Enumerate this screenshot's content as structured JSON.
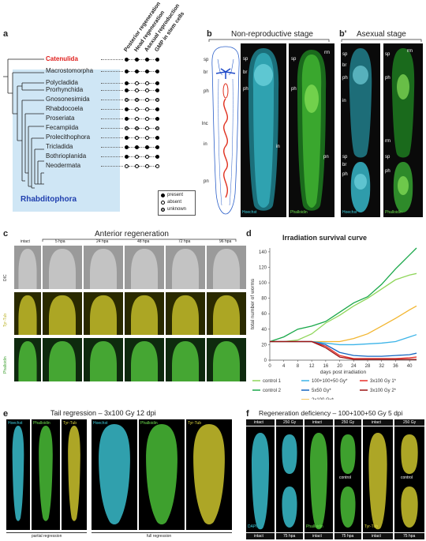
{
  "panel_a": {
    "label": "a",
    "columns": [
      "Posterior regeneration",
      "Head regeneration",
      "Asexual reproduction",
      "GMP in stem cells"
    ],
    "taxa": [
      {
        "name": "Catenulida",
        "highlight": true,
        "states": [
          "present",
          "present",
          "present",
          "present"
        ]
      },
      {
        "name": "Macrostomorpha",
        "highlight": false,
        "states": [
          "present",
          "present",
          "present",
          "present"
        ]
      },
      {
        "name": "Polycladida",
        "highlight": false,
        "states": [
          "present",
          "absent",
          "absent",
          "present"
        ]
      },
      {
        "name": "Prorhynchida",
        "highlight": false,
        "states": [
          "present",
          "absent",
          "absent",
          "present"
        ]
      },
      {
        "name": "Gnosonesimida",
        "highlight": false,
        "states": [
          "unknown",
          "unknown",
          "absent",
          "unknown"
        ]
      },
      {
        "name": "Rhabdocoela",
        "highlight": false,
        "states": [
          "present",
          "absent",
          "absent",
          "present"
        ]
      },
      {
        "name": "Proseriata",
        "highlight": false,
        "states": [
          "present",
          "absent",
          "absent",
          "present"
        ]
      },
      {
        "name": "Fecampiida",
        "highlight": false,
        "states": [
          "unknown",
          "unknown",
          "absent",
          "unknown"
        ]
      },
      {
        "name": "Prolecithophora",
        "highlight": false,
        "states": [
          "present",
          "absent",
          "absent",
          "present"
        ]
      },
      {
        "name": "Tricladida",
        "highlight": false,
        "states": [
          "present",
          "present",
          "present",
          "present"
        ]
      },
      {
        "name": "Bothrioplanida",
        "highlight": false,
        "states": [
          "present",
          "absent",
          "absent",
          "present"
        ]
      },
      {
        "name": "Neodermata",
        "highlight": false,
        "states": [
          "absent",
          "absent",
          "absent",
          "absent"
        ]
      }
    ],
    "group_label": "Rhabditophora",
    "legend": [
      {
        "state": "present",
        "label": "present"
      },
      {
        "state": "absent",
        "label": "absent"
      },
      {
        "state": "unknown",
        "label": "unknown"
      }
    ],
    "colors": {
      "present": "#000000",
      "absent": "#ffffff",
      "unknown": "#9a9a9a",
      "catenulida": "#e0201e",
      "rhabditophora_bg": "#cfe6f5",
      "rhabditophora_text": "#1f3fae"
    }
  },
  "panel_b": {
    "label": "b",
    "title": "Non-reproductive stage",
    "schematic_labels": [
      "sp",
      "br",
      "ph",
      "lnc",
      "in",
      "pn"
    ],
    "hoechst_labels": [
      "sp",
      "br",
      "ph",
      "in"
    ],
    "phalloidin_labels": [
      "sp",
      "rm",
      "ph",
      "pn"
    ],
    "channels": [
      "Hoechst",
      "Phalloidin"
    ]
  },
  "panel_b_prime": {
    "label": "b'",
    "title": "Asexual stage",
    "hoechst_labels": [
      "sp",
      "br",
      "ph",
      "in",
      "sp",
      "br",
      "ph"
    ],
    "phalloidin_labels": [
      "rm",
      "sp",
      "ph",
      "rm",
      "sp",
      "ph"
    ],
    "channels": [
      "Hoechst",
      "Phalloidin"
    ]
  },
  "panel_c": {
    "label": "c",
    "title": "Anterior regeneration",
    "timepoints": [
      "intact",
      "5 hpa",
      "24 hpa",
      "48 hpa",
      "72 hpa",
      "96 hpa"
    ],
    "rows": [
      "DIC",
      "Tyr-Tub",
      "Phalloidin"
    ]
  },
  "panel_d": {
    "label": "d",
    "chart_data": {
      "type": "line",
      "title": "Irradiation survival curve",
      "xlabel": "days post irradiation",
      "ylabel": "total number of worms",
      "xlim": [
        0,
        42
      ],
      "ylim": [
        0,
        145
      ],
      "xticks": [
        0,
        4,
        8,
        12,
        16,
        20,
        24,
        28,
        32,
        36,
        40
      ],
      "yticks": [
        0,
        20,
        40,
        60,
        80,
        100,
        120,
        140
      ],
      "series": [
        {
          "name": "control 1",
          "color": "#8fd65a",
          "x": [
            0,
            4,
            8,
            12,
            16,
            20,
            24,
            28,
            32,
            36,
            40,
            42
          ],
          "y": [
            24,
            24,
            26,
            34,
            48,
            58,
            70,
            80,
            92,
            104,
            110,
            112
          ]
        },
        {
          "name": "control 2",
          "color": "#1aa84a",
          "x": [
            0,
            4,
            8,
            12,
            16,
            20,
            24,
            28,
            32,
            36,
            40,
            42
          ],
          "y": [
            24,
            30,
            40,
            44,
            50,
            62,
            74,
            82,
            98,
            118,
            136,
            145
          ]
        },
        {
          "name": "2x100 Gy*",
          "color": "#f2b630",
          "x": [
            0,
            4,
            8,
            12,
            16,
            20,
            24,
            28,
            32,
            36,
            40,
            42
          ],
          "y": [
            24,
            24,
            24,
            24,
            24,
            24,
            28,
            34,
            44,
            54,
            65,
            70
          ]
        },
        {
          "name": "100+100+50 Gy*",
          "color": "#3cb4e8",
          "x": [
            0,
            4,
            8,
            12,
            16,
            20,
            24,
            28,
            32,
            36,
            40,
            42
          ],
          "y": [
            24,
            24,
            24,
            24,
            22,
            20,
            20,
            21,
            22,
            24,
            30,
            33
          ]
        },
        {
          "name": "5x50 Gy*",
          "color": "#1565c0",
          "x": [
            0,
            4,
            8,
            12,
            16,
            20,
            24,
            28,
            32,
            36,
            40,
            42
          ],
          "y": [
            24,
            24,
            24,
            24,
            20,
            10,
            6,
            5,
            5,
            6,
            7,
            9
          ]
        },
        {
          "name": "3x100 Gy 1*",
          "color": "#e8302a",
          "x": [
            0,
            4,
            8,
            12,
            16,
            20,
            24,
            28,
            32,
            36,
            40,
            42
          ],
          "y": [
            24,
            24,
            24,
            24,
            18,
            6,
            2,
            2,
            2,
            2,
            3,
            4
          ]
        },
        {
          "name": "3x100 Gy 2*",
          "color": "#9b1414",
          "x": [
            0,
            4,
            8,
            12,
            16,
            20,
            24,
            28,
            32,
            36,
            40,
            42
          ],
          "y": [
            24,
            24,
            24,
            24,
            16,
            4,
            1,
            1,
            1,
            1,
            1,
            1
          ]
        }
      ],
      "legend_position": "bottom",
      "grid": false
    }
  },
  "panel_e": {
    "label": "e",
    "title": "Tail regression – 3x100 Gy 12 dpi",
    "channels": [
      "Hoechst",
      "Phalloidin",
      "Tyr-Tub"
    ],
    "group_captions": [
      "partial regression",
      "full regression"
    ]
  },
  "panel_f": {
    "label": "f",
    "title": "Regeneration deficiency – 100+100+50 Gy 5 dpi",
    "top_headers": [
      "intact",
      "250 Gy",
      "intact",
      "250 Gy",
      "intact",
      "250 Gy"
    ],
    "bottom_headers": [
      "intact",
      "75 hpa",
      "intact",
      "75 hpa",
      "intact",
      "75 hpa"
    ],
    "sub_captions": [
      "control",
      "control"
    ],
    "channels": [
      "DAPI",
      "Phalloidin",
      "Tyr-Tub"
    ]
  }
}
